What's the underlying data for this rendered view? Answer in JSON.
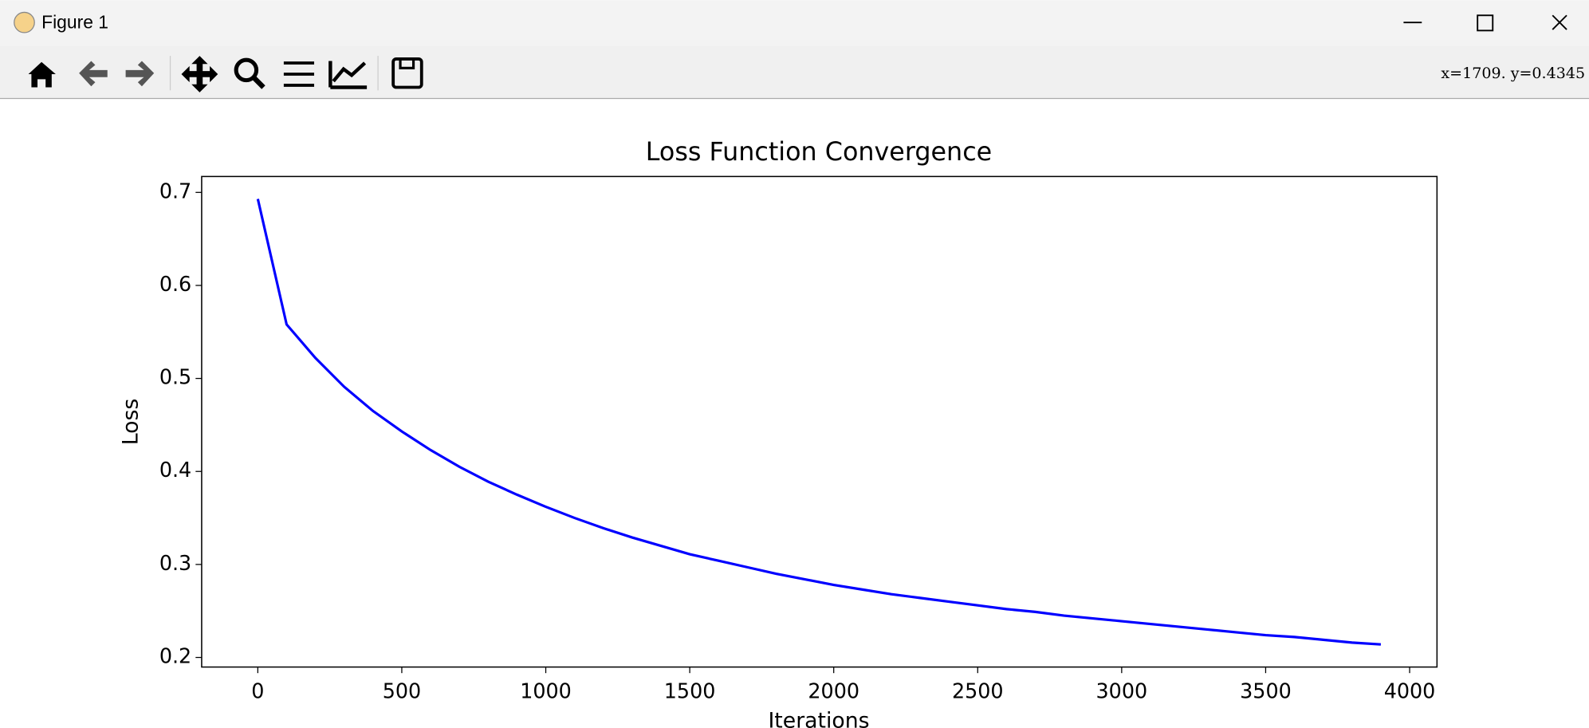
{
  "window": {
    "title": "Figure 1",
    "status": "x=1709.  y=0.4345"
  },
  "chart_data": {
    "type": "line",
    "title": "Loss Function Convergence",
    "x_label": "Iterations",
    "y_label": "Loss",
    "x": [
      0,
      100,
      200,
      300,
      400,
      500,
      600,
      700,
      800,
      900,
      1000,
      1100,
      1200,
      1300,
      1400,
      1500,
      1600,
      1700,
      1800,
      1900,
      2000,
      2100,
      2200,
      2300,
      2400,
      2500,
      2600,
      2700,
      2800,
      2900,
      3000,
      3100,
      3200,
      3300,
      3400,
      3500,
      3600,
      3700,
      3800,
      3900
    ],
    "values": [
      0.693,
      0.558,
      0.522,
      0.491,
      0.465,
      0.443,
      0.423,
      0.405,
      0.389,
      0.375,
      0.362,
      0.35,
      0.339,
      0.329,
      0.32,
      0.311,
      0.304,
      0.297,
      0.29,
      0.284,
      0.278,
      0.273,
      0.268,
      0.264,
      0.26,
      0.256,
      0.252,
      0.249,
      0.245,
      0.242,
      0.239,
      0.236,
      0.233,
      0.23,
      0.227,
      0.224,
      0.222,
      0.219,
      0.216,
      0.214
    ],
    "color": "#0000ff",
    "xlim": [
      -195,
      4095
    ],
    "xticks": [
      0,
      500,
      1000,
      1500,
      2000,
      2500,
      3000,
      3500,
      4000
    ],
    "ylim": [
      0.1897,
      0.7171
    ],
    "yticks": [
      0.2,
      0.3,
      0.4,
      0.5,
      0.6,
      0.7
    ],
    "grid": false
  }
}
